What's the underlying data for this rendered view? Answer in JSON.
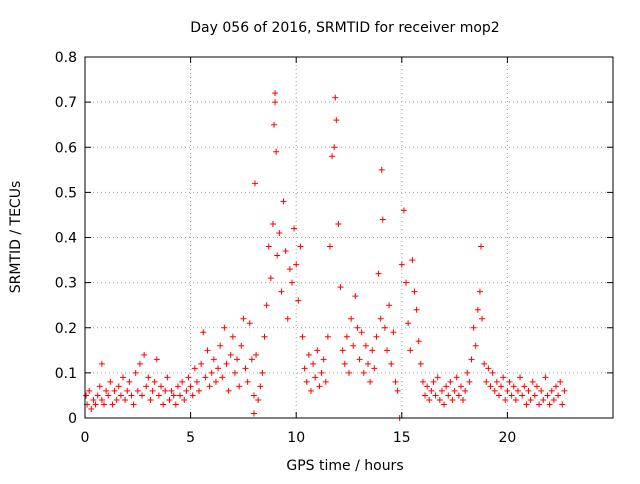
{
  "chart_data": {
    "type": "scatter",
    "title": "Day 056 of 2016, SRMTID for receiver mop2",
    "xlabel": "GPS time / hours",
    "ylabel": "SRMTID / TECUs",
    "xlim": [
      0,
      25
    ],
    "ylim": [
      0,
      0.8
    ],
    "x_ticks": [
      0,
      5,
      10,
      15,
      20
    ],
    "x_tick_labels": [
      "0",
      "5",
      "10",
      "15",
      "20"
    ],
    "y_ticks": [
      0,
      0.1,
      0.2,
      0.3,
      0.4,
      0.5,
      0.6,
      0.7,
      0.8
    ],
    "y_tick_labels": [
      "0",
      "0.1",
      "0.2",
      "0.3",
      "0.4",
      "0.5",
      "0.6",
      "0.7",
      "0.8"
    ],
    "grid": true,
    "marker": "+",
    "color": "#ff0000",
    "series": [
      {
        "name": "SRMTID",
        "points": [
          [
            0.05,
            0.05
          ],
          [
            0.1,
            0.03
          ],
          [
            0.2,
            0.06
          ],
          [
            0.3,
            0.02
          ],
          [
            0.4,
            0.04
          ],
          [
            0.5,
            0.03
          ],
          [
            0.6,
            0.05
          ],
          [
            0.7,
            0.07
          ],
          [
            0.8,
            0.04
          ],
          [
            0.8,
            0.12
          ],
          [
            0.9,
            0.03
          ],
          [
            1.0,
            0.06
          ],
          [
            1.1,
            0.05
          ],
          [
            1.2,
            0.08
          ],
          [
            1.3,
            0.03
          ],
          [
            1.4,
            0.06
          ],
          [
            1.5,
            0.04
          ],
          [
            1.6,
            0.07
          ],
          [
            1.7,
            0.05
          ],
          [
            1.8,
            0.09
          ],
          [
            1.9,
            0.04
          ],
          [
            2.0,
            0.06
          ],
          [
            2.1,
            0.08
          ],
          [
            2.2,
            0.05
          ],
          [
            2.3,
            0.03
          ],
          [
            2.4,
            0.1
          ],
          [
            2.5,
            0.06
          ],
          [
            2.6,
            0.12
          ],
          [
            2.7,
            0.05
          ],
          [
            2.8,
            0.14
          ],
          [
            2.9,
            0.07
          ],
          [
            3.0,
            0.09
          ],
          [
            3.1,
            0.04
          ],
          [
            3.2,
            0.06
          ],
          [
            3.3,
            0.08
          ],
          [
            3.4,
            0.13
          ],
          [
            3.5,
            0.05
          ],
          [
            3.6,
            0.07
          ],
          [
            3.7,
            0.03
          ],
          [
            3.8,
            0.06
          ],
          [
            3.9,
            0.09
          ],
          [
            4.0,
            0.04
          ],
          [
            4.1,
            0.06
          ],
          [
            4.2,
            0.05
          ],
          [
            4.3,
            0.03
          ],
          [
            4.4,
            0.07
          ],
          [
            4.5,
            0.05
          ],
          [
            4.6,
            0.08
          ],
          [
            4.7,
            0.04
          ],
          [
            4.8,
            0.06
          ],
          [
            4.9,
            0.09
          ],
          [
            5.0,
            0.07
          ],
          [
            5.1,
            0.05
          ],
          [
            5.2,
            0.11
          ],
          [
            5.3,
            0.08
          ],
          [
            5.4,
            0.06
          ],
          [
            5.5,
            0.12
          ],
          [
            5.6,
            0.19
          ],
          [
            5.7,
            0.09
          ],
          [
            5.8,
            0.15
          ],
          [
            5.9,
            0.07
          ],
          [
            6.0,
            0.1
          ],
          [
            6.1,
            0.13
          ],
          [
            6.2,
            0.08
          ],
          [
            6.3,
            0.11
          ],
          [
            6.4,
            0.16
          ],
          [
            6.5,
            0.09
          ],
          [
            6.6,
            0.2
          ],
          [
            6.7,
            0.12
          ],
          [
            6.8,
            0.06
          ],
          [
            6.9,
            0.14
          ],
          [
            7.0,
            0.18
          ],
          [
            7.1,
            0.1
          ],
          [
            7.2,
            0.13
          ],
          [
            7.3,
            0.07
          ],
          [
            7.4,
            0.16
          ],
          [
            7.5,
            0.22
          ],
          [
            7.6,
            0.11
          ],
          [
            7.7,
            0.08
          ],
          [
            7.8,
            0.21
          ],
          [
            7.9,
            0.13
          ],
          [
            8.0,
            0.05
          ],
          [
            8.0,
            0.01
          ],
          [
            8.05,
            0.52
          ],
          [
            8.1,
            0.14
          ],
          [
            8.2,
            0.04
          ],
          [
            8.3,
            0.07
          ],
          [
            8.4,
            0.1
          ],
          [
            8.5,
            0.18
          ],
          [
            8.6,
            0.25
          ],
          [
            8.7,
            0.38
          ],
          [
            8.8,
            0.31
          ],
          [
            8.9,
            0.43
          ],
          [
            8.95,
            0.65
          ],
          [
            9.0,
            0.72
          ],
          [
            9.0,
            0.7
          ],
          [
            9.05,
            0.59
          ],
          [
            9.1,
            0.36
          ],
          [
            9.2,
            0.41
          ],
          [
            9.3,
            0.28
          ],
          [
            9.4,
            0.48
          ],
          [
            9.5,
            0.37
          ],
          [
            9.6,
            0.22
          ],
          [
            9.7,
            0.33
          ],
          [
            9.8,
            0.3
          ],
          [
            9.9,
            0.42
          ],
          [
            10.0,
            0.34
          ],
          [
            10.1,
            0.26
          ],
          [
            10.2,
            0.38
          ],
          [
            10.3,
            0.18
          ],
          [
            10.4,
            0.11
          ],
          [
            10.5,
            0.08
          ],
          [
            10.6,
            0.14
          ],
          [
            10.7,
            0.06
          ],
          [
            10.8,
            0.12
          ],
          [
            10.9,
            0.09
          ],
          [
            11.0,
            0.15
          ],
          [
            11.1,
            0.07
          ],
          [
            11.2,
            0.1
          ],
          [
            11.3,
            0.13
          ],
          [
            11.4,
            0.08
          ],
          [
            11.5,
            0.18
          ],
          [
            11.6,
            0.38
          ],
          [
            11.7,
            0.58
          ],
          [
            11.8,
            0.6
          ],
          [
            11.85,
            0.71
          ],
          [
            11.9,
            0.66
          ],
          [
            12.0,
            0.43
          ],
          [
            12.1,
            0.29
          ],
          [
            12.2,
            0.15
          ],
          [
            12.3,
            0.12
          ],
          [
            12.4,
            0.18
          ],
          [
            12.5,
            0.1
          ],
          [
            12.6,
            0.22
          ],
          [
            12.7,
            0.16
          ],
          [
            12.8,
            0.27
          ],
          [
            12.9,
            0.2
          ],
          [
            13.0,
            0.13
          ],
          [
            13.1,
            0.19
          ],
          [
            13.2,
            0.1
          ],
          [
            13.3,
            0.16
          ],
          [
            13.4,
            0.12
          ],
          [
            13.5,
            0.08
          ],
          [
            13.6,
            0.15
          ],
          [
            13.7,
            0.11
          ],
          [
            13.8,
            0.18
          ],
          [
            13.9,
            0.32
          ],
          [
            14.0,
            0.22
          ],
          [
            14.05,
            0.55
          ],
          [
            14.1,
            0.44
          ],
          [
            14.2,
            0.2
          ],
          [
            14.3,
            0.15
          ],
          [
            14.4,
            0.25
          ],
          [
            14.5,
            0.12
          ],
          [
            14.6,
            0.19
          ],
          [
            14.7,
            0.08
          ],
          [
            14.8,
            0.06
          ],
          [
            14.9,
            0.0
          ],
          [
            15.0,
            0.34
          ],
          [
            15.1,
            0.46
          ],
          [
            15.2,
            0.3
          ],
          [
            15.3,
            0.21
          ],
          [
            15.4,
            0.15
          ],
          [
            15.5,
            0.35
          ],
          [
            15.6,
            0.28
          ],
          [
            15.7,
            0.24
          ],
          [
            15.8,
            0.17
          ],
          [
            15.9,
            0.12
          ],
          [
            16.0,
            0.08
          ],
          [
            16.1,
            0.05
          ],
          [
            16.2,
            0.07
          ],
          [
            16.3,
            0.04
          ],
          [
            16.4,
            0.06
          ],
          [
            16.5,
            0.08
          ],
          [
            16.6,
            0.05
          ],
          [
            16.7,
            0.09
          ],
          [
            16.8,
            0.04
          ],
          [
            16.9,
            0.06
          ],
          [
            17.0,
            0.03
          ],
          [
            17.1,
            0.07
          ],
          [
            17.2,
            0.05
          ],
          [
            17.3,
            0.08
          ],
          [
            17.4,
            0.04
          ],
          [
            17.5,
            0.06
          ],
          [
            17.6,
            0.09
          ],
          [
            17.7,
            0.05
          ],
          [
            17.8,
            0.07
          ],
          [
            17.9,
            0.04
          ],
          [
            18.0,
            0.06
          ],
          [
            18.1,
            0.1
          ],
          [
            18.2,
            0.08
          ],
          [
            18.3,
            0.13
          ],
          [
            18.4,
            0.2
          ],
          [
            18.5,
            0.16
          ],
          [
            18.6,
            0.24
          ],
          [
            18.7,
            0.28
          ],
          [
            18.75,
            0.38
          ],
          [
            18.8,
            0.22
          ],
          [
            18.9,
            0.12
          ],
          [
            19.0,
            0.08
          ],
          [
            19.1,
            0.11
          ],
          [
            19.2,
            0.07
          ],
          [
            19.3,
            0.1
          ],
          [
            19.4,
            0.06
          ],
          [
            19.5,
            0.08
          ],
          [
            19.6,
            0.05
          ],
          [
            19.7,
            0.07
          ],
          [
            19.8,
            0.09
          ],
          [
            19.9,
            0.04
          ],
          [
            20.0,
            0.06
          ],
          [
            20.1,
            0.08
          ],
          [
            20.2,
            0.05
          ],
          [
            20.3,
            0.07
          ],
          [
            20.4,
            0.04
          ],
          [
            20.5,
            0.06
          ],
          [
            20.6,
            0.09
          ],
          [
            20.7,
            0.05
          ],
          [
            20.8,
            0.07
          ],
          [
            20.9,
            0.03
          ],
          [
            21.0,
            0.06
          ],
          [
            21.1,
            0.04
          ],
          [
            21.2,
            0.08
          ],
          [
            21.3,
            0.05
          ],
          [
            21.4,
            0.07
          ],
          [
            21.5,
            0.03
          ],
          [
            21.6,
            0.06
          ],
          [
            21.7,
            0.04
          ],
          [
            21.8,
            0.09
          ],
          [
            21.9,
            0.05
          ],
          [
            22.0,
            0.03
          ],
          [
            22.1,
            0.06
          ],
          [
            22.2,
            0.04
          ],
          [
            22.3,
            0.07
          ],
          [
            22.4,
            0.05
          ],
          [
            22.5,
            0.08
          ],
          [
            22.6,
            0.03
          ],
          [
            22.7,
            0.06
          ]
        ]
      }
    ]
  }
}
